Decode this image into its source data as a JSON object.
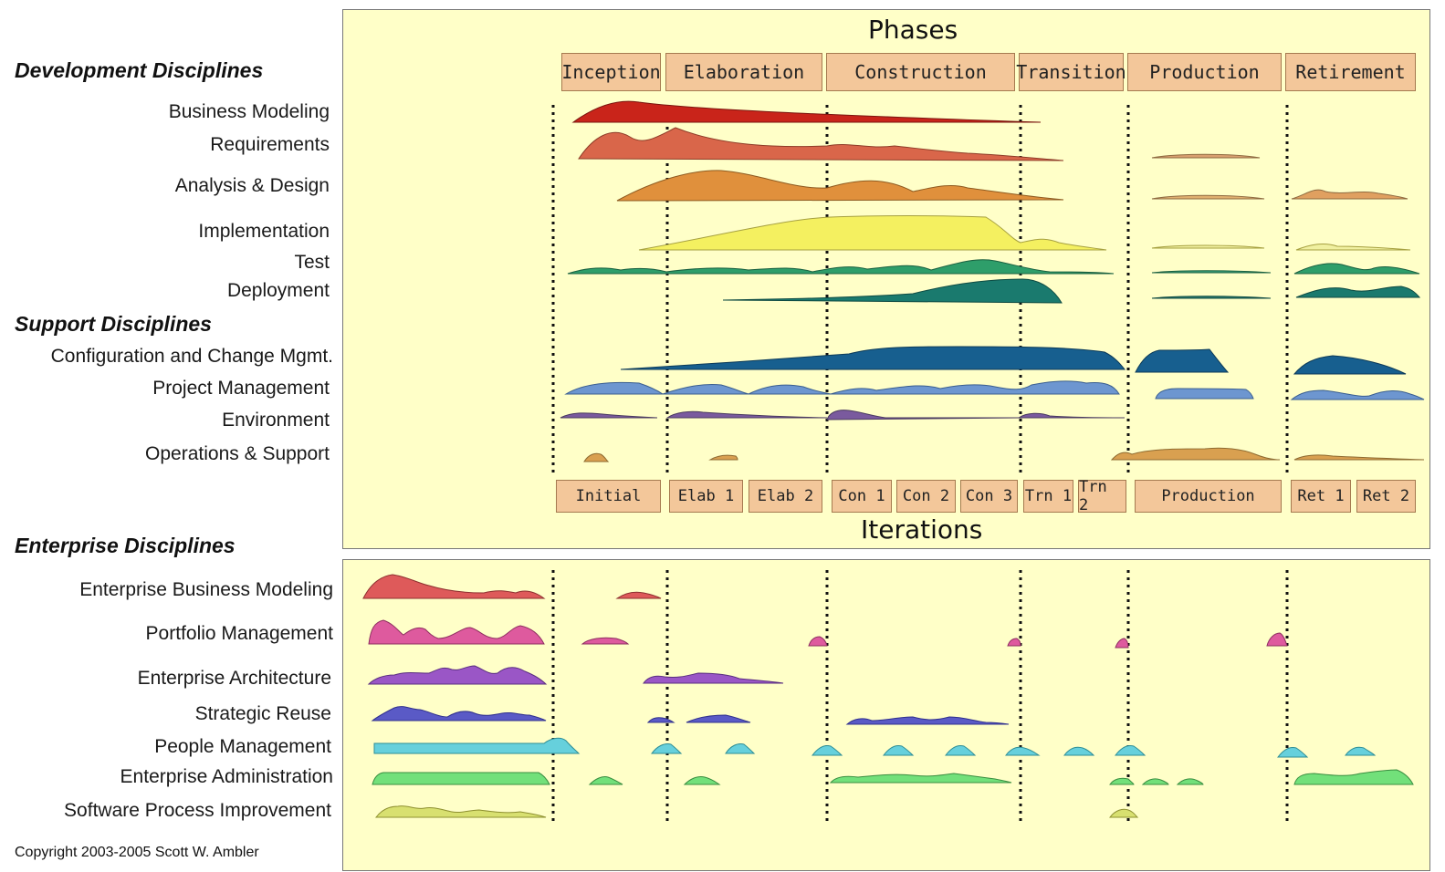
{
  "headings": {
    "development": "Development Disciplines",
    "support": "Support Disciplines",
    "enterprise": "Enterprise Disciplines"
  },
  "top_panel": {
    "phases_title": "Phases",
    "iterations_title": "Iterations",
    "phases": [
      "Inception",
      "Elaboration",
      "Construction",
      "Transition",
      "Production",
      "Retirement"
    ],
    "iterations": [
      "Initial",
      "Elab 1",
      "Elab 2",
      "Con 1",
      "Con 2",
      "Con 3",
      "Trn 1",
      "Trn 2",
      "Production",
      "Ret 1",
      "Ret 2"
    ]
  },
  "development_disciplines": [
    "Business Modeling",
    "Requirements",
    "Analysis & Design",
    "Implementation",
    "Test",
    "Deployment"
  ],
  "support_disciplines": [
    "Configuration and Change Mgmt.",
    "Project Management",
    "Environment",
    "Operations & Support"
  ],
  "enterprise_disciplines": [
    "Enterprise Business Modeling",
    "Portfolio Management",
    "Enterprise Architecture",
    "Strategic Reuse",
    "People Management",
    "Enterprise Administration",
    "Software Process Improvement"
  ],
  "copyright": "Copyright 2003-2005 Scott W. Ambler",
  "colors": {
    "panel_bg": "#ffffc8",
    "box_fill": "#f3c79a",
    "business_modeling": "#c9241a",
    "requirements": "#d9664a",
    "analysis_design": "#e0903c",
    "implementation": "#f4f060",
    "test": "#2e9e6a",
    "deployment": "#1a7a6e",
    "config_change": "#175f8f",
    "project_mgmt": "#6d96d0",
    "environment": "#7a5a9e",
    "operations": "#d9a050",
    "ent_business_modeling": "#de5a5a",
    "portfolio": "#de5a9e",
    "ent_architecture": "#9a56c6",
    "strategic_reuse": "#5a5ac6",
    "people": "#66d0dc",
    "ent_admin": "#72e07a",
    "spi": "#d8e070"
  }
}
